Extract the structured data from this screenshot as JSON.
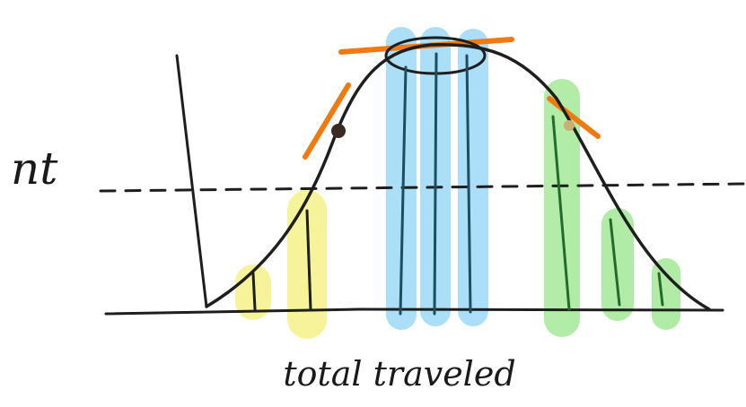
{
  "labels": {
    "y_axis": "nt",
    "x_axis": "total traveled"
  }
}
